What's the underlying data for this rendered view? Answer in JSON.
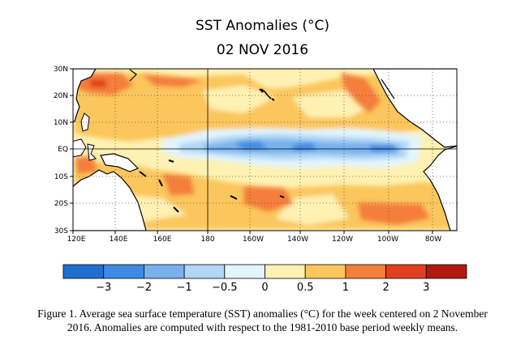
{
  "title": "SST Anomalies (°C)",
  "subtitle": "02 NOV 2016",
  "y_ticks": [
    "30N",
    "20N",
    "10N",
    "EQ",
    "10S",
    "20S",
    "30S"
  ],
  "x_ticks": [
    "120E",
    "140E",
    "160E",
    "180",
    "160W",
    "140W",
    "120W",
    "100W",
    "80W"
  ],
  "colorbar": {
    "labels": [
      "−3",
      "−2",
      "−1",
      "−0.5",
      "0",
      "0.5",
      "1",
      "2",
      "3"
    ],
    "colors": [
      "#1f6fd0",
      "#3f8be3",
      "#78b1ee",
      "#b1d6f7",
      "#e2f5fb",
      "#fff1b2",
      "#fbc65c",
      "#f47e3a",
      "#e0401f",
      "#b21a10"
    ]
  },
  "caption": {
    "line1": "Figure 1. Average sea surface temperature (SST) anomalies (°C) for the week centered on 2 November",
    "line2": "2016.  Anomalies are computed with respect to the 1981-2010 base period weekly means."
  },
  "colors": {
    "land": "#ffffff",
    "coast": "#000000",
    "grid": "#555555"
  }
}
